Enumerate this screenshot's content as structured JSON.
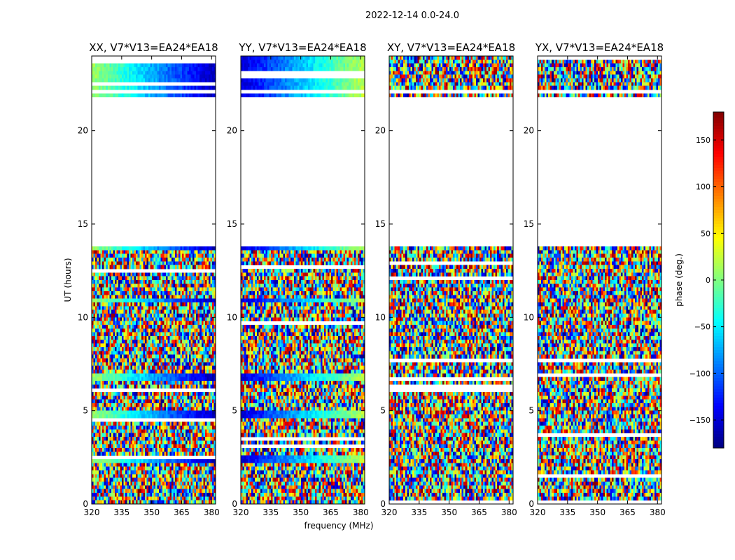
{
  "chart_data": {
    "type": "heatmap",
    "suptitle": "2022-12-14 0.0-24.0",
    "xlabel": "frequency (MHz)",
    "ylabel": "UT (hours)",
    "xlim": [
      320,
      382
    ],
    "ylim": [
      0,
      24
    ],
    "x_ticks": [
      320,
      335,
      350,
      365,
      380
    ],
    "y_ticks": [
      0,
      5,
      10,
      15,
      20
    ],
    "panels": [
      {
        "title": "XX, V7*V13=EA24*EA18",
        "pol": "XX",
        "parallel_hand": true,
        "phase_start": 10,
        "phase_end": -160
      },
      {
        "title": "YY, V7*V13=EA24*EA18",
        "pol": "YY",
        "parallel_hand": true,
        "phase_start": -150,
        "phase_end": 20
      },
      {
        "title": "XY, V7*V13=EA24*EA18",
        "pol": "XY",
        "parallel_hand": false
      },
      {
        "title": "YX, V7*V13=EA24*EA18",
        "pol": "YX",
        "parallel_hand": false
      }
    ],
    "gaps_hours": [
      [
        13.85,
        21.5
      ],
      [
        21.62,
        21.72
      ],
      [
        22.02,
        22.1
      ],
      [
        23.1,
        23.25
      ]
    ],
    "colorbar": {
      "label": "phase (deg.)",
      "range": [
        -180,
        180
      ],
      "ticks": [
        150,
        100,
        50,
        0,
        -50,
        -100,
        -150
      ],
      "tick_labels": [
        "150",
        "100",
        "50",
        "0",
        "−50",
        "−100",
        "−150"
      ],
      "colormap": "jet"
    }
  }
}
